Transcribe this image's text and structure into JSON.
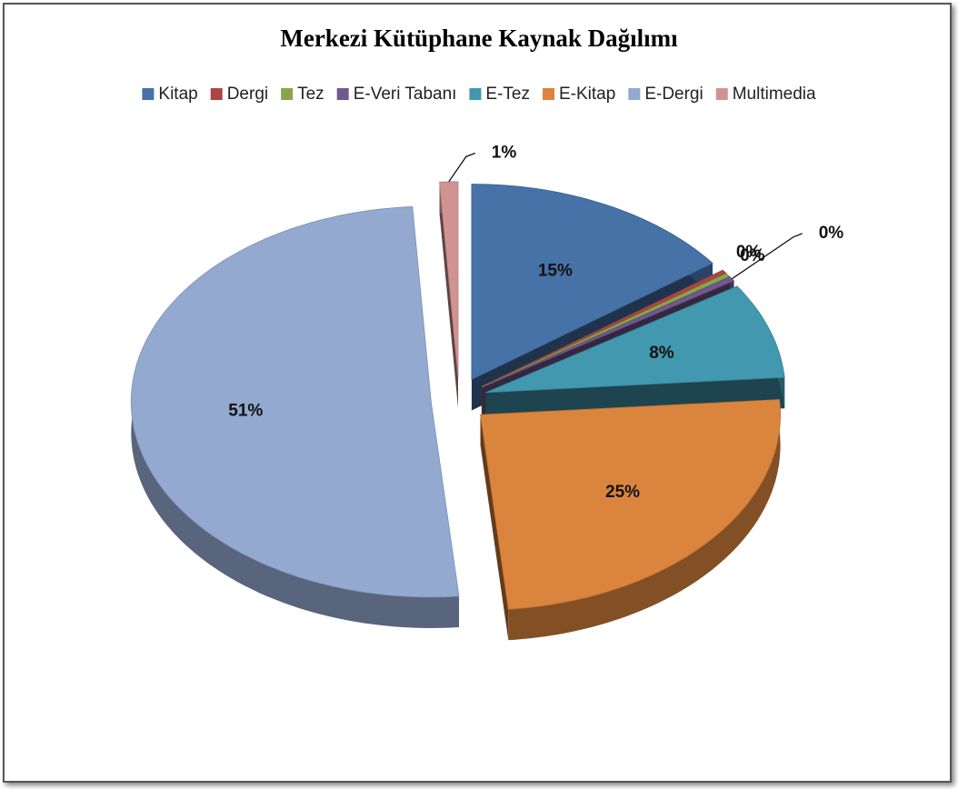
{
  "chart_data": {
    "type": "pie",
    "title": "Merkezi Kütüphane Kaynak Dağılımı",
    "categories": [
      "Kitap",
      "Dergi",
      "Tez",
      "E-Veri Tabanı",
      "E-Tez",
      "E-Kitap",
      "E-Dergi",
      "Multimedia"
    ],
    "values": [
      15,
      0.3,
      0.3,
      0.4,
      8,
      25,
      51,
      1
    ],
    "value_labels": [
      "15%",
      "0%",
      "0%",
      "0%",
      "8%",
      "25%",
      "51%",
      "1%"
    ],
    "colors": [
      "#4672a8",
      "#aa4643",
      "#89a54e",
      "#71588f",
      "#4198af",
      "#db843d",
      "#93a9cf",
      "#d19392"
    ],
    "legend": "top"
  }
}
